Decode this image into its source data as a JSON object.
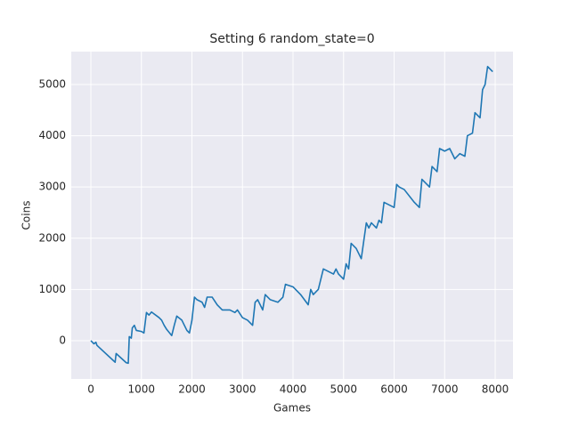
{
  "chart_data": {
    "type": "line",
    "title": "Setting 6 random_state=0",
    "x_label": "Games",
    "y_label": "Coins",
    "color": "#1f77b4",
    "grid": true,
    "xlim": [
      -388,
      8352
    ],
    "ylim": [
      -747,
      5642
    ],
    "xticks": [
      0,
      1000,
      2000,
      3000,
      4000,
      5000,
      6000,
      7000,
      8000
    ],
    "yticks": [
      0,
      1000,
      2000,
      3000,
      4000,
      5000
    ],
    "x": [
      0,
      60,
      100,
      120,
      480,
      500,
      700,
      740,
      760,
      800,
      820,
      860,
      900,
      1000,
      1050,
      1100,
      1150,
      1200,
      1350,
      1400,
      1450,
      1500,
      1600,
      1650,
      1700,
      1800,
      1900,
      1950,
      2000,
      2050,
      2100,
      2200,
      2250,
      2300,
      2400,
      2500,
      2600,
      2750,
      2850,
      2900,
      3000,
      3100,
      3200,
      3250,
      3300,
      3400,
      3450,
      3550,
      3700,
      3800,
      3850,
      4000,
      4150,
      4300,
      4350,
      4400,
      4500,
      4600,
      4700,
      4800,
      4850,
      4900,
      5000,
      5050,
      5100,
      5150,
      5250,
      5350,
      5400,
      5450,
      5500,
      5550,
      5650,
      5700,
      5750,
      5800,
      5900,
      6000,
      6050,
      6100,
      6200,
      6400,
      6500,
      6550,
      6600,
      6700,
      6750,
      6850,
      6900,
      7000,
      7100,
      7200,
      7300,
      7400,
      7450,
      7550,
      7600,
      7700,
      7750,
      7800,
      7850,
      7900,
      7950
    ],
    "values": [
      0,
      -60,
      -30,
      -90,
      -420,
      -250,
      -430,
      -440,
      80,
      50,
      250,
      300,
      200,
      180,
      150,
      550,
      500,
      560,
      450,
      400,
      300,
      220,
      100,
      300,
      480,
      400,
      200,
      150,
      400,
      850,
      800,
      750,
      650,
      850,
      850,
      700,
      600,
      600,
      550,
      600,
      450,
      400,
      300,
      750,
      800,
      600,
      900,
      800,
      750,
      850,
      1100,
      1050,
      900,
      700,
      1000,
      900,
      1000,
      1400,
      1350,
      1300,
      1400,
      1300,
      1200,
      1500,
      1400,
      1900,
      1800,
      1600,
      1950,
      2300,
      2200,
      2300,
      2200,
      2350,
      2300,
      2700,
      2650,
      2600,
      3050,
      3000,
      2950,
      2700,
      2600,
      3150,
      3100,
      3000,
      3400,
      3300,
      3750,
      3700,
      3750,
      3550,
      3650,
      3600,
      4000,
      4050,
      4450,
      4350,
      4900,
      5000,
      5350,
      5300,
      5250
    ]
  }
}
